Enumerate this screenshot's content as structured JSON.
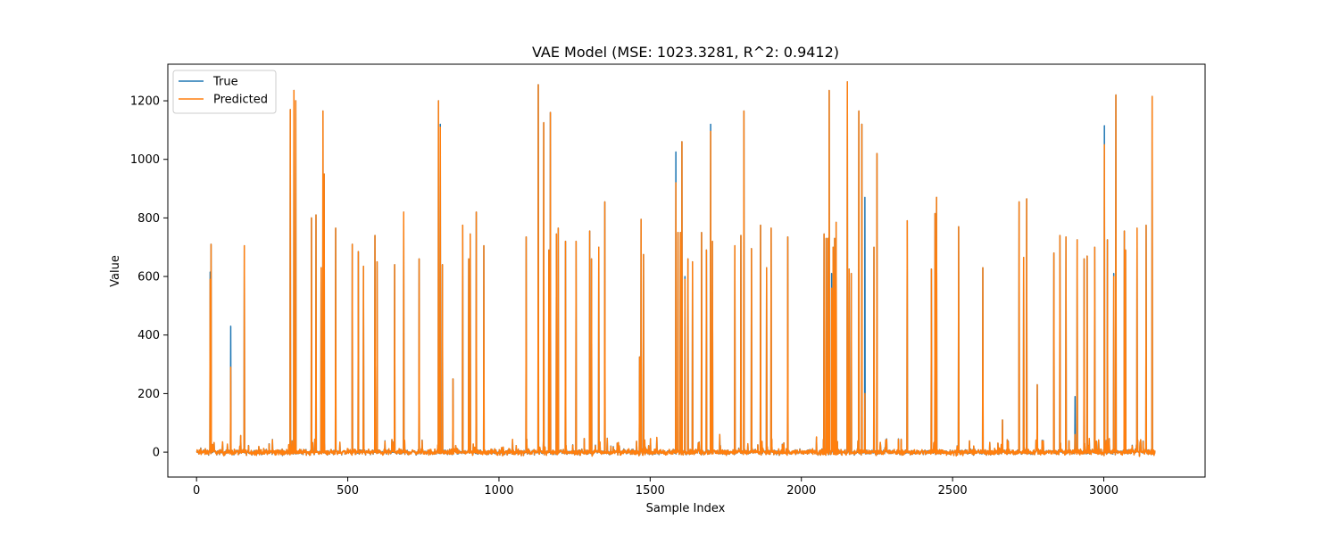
{
  "chart_data": {
    "type": "line",
    "title": "VAE Model (MSE: 1023.3281, R^2: 0.9412)",
    "xlabel": "Sample Index",
    "ylabel": "Value",
    "xlim": [
      -95,
      3335
    ],
    "ylim": [
      -85,
      1325
    ],
    "x_ticks": [
      0,
      500,
      1000,
      1500,
      2000,
      2500,
      3000
    ],
    "y_ticks": [
      0,
      200,
      400,
      600,
      800,
      1000,
      1200
    ],
    "n_samples": 3170,
    "grid": false,
    "legend_position": "upper-left",
    "colors": {
      "true": "#1f77b4",
      "predicted": "#ff7f0e"
    },
    "series": [
      {
        "name": "True",
        "color": "#1f77b4",
        "spikes": [
          [
            45,
            615
          ],
          [
            48,
            710
          ],
          [
            113,
            430
          ],
          [
            158,
            705
          ],
          [
            310,
            1170
          ],
          [
            322,
            1235
          ],
          [
            328,
            1200
          ],
          [
            380,
            800
          ],
          [
            395,
            810
          ],
          [
            412,
            630
          ],
          [
            418,
            1165
          ],
          [
            422,
            950
          ],
          [
            460,
            765
          ],
          [
            515,
            710
          ],
          [
            535,
            685
          ],
          [
            552,
            635
          ],
          [
            590,
            740
          ],
          [
            597,
            650
          ],
          [
            655,
            640
          ],
          [
            685,
            820
          ],
          [
            736,
            660
          ],
          [
            800,
            1200
          ],
          [
            806,
            1120
          ],
          [
            813,
            640
          ],
          [
            848,
            250
          ],
          [
            880,
            775
          ],
          [
            900,
            660
          ],
          [
            905,
            745
          ],
          [
            925,
            820
          ],
          [
            950,
            705
          ],
          [
            1090,
            735
          ],
          [
            1130,
            1255
          ],
          [
            1148,
            1125
          ],
          [
            1165,
            690
          ],
          [
            1170,
            1160
          ],
          [
            1190,
            745
          ],
          [
            1196,
            765
          ],
          [
            1220,
            720
          ],
          [
            1255,
            720
          ],
          [
            1300,
            755
          ],
          [
            1306,
            660
          ],
          [
            1330,
            700
          ],
          [
            1350,
            855
          ],
          [
            1465,
            325
          ],
          [
            1470,
            795
          ],
          [
            1478,
            675
          ],
          [
            1585,
            1025
          ],
          [
            1592,
            750
          ],
          [
            1600,
            750
          ],
          [
            1605,
            1060
          ],
          [
            1615,
            600
          ],
          [
            1625,
            660
          ],
          [
            1640,
            650
          ],
          [
            1670,
            750
          ],
          [
            1686,
            690
          ],
          [
            1700,
            1120
          ],
          [
            1706,
            720
          ],
          [
            1730,
            60
          ],
          [
            1780,
            705
          ],
          [
            1800,
            740
          ],
          [
            1810,
            1165
          ],
          [
            1835,
            695
          ],
          [
            1865,
            775
          ],
          [
            1885,
            630
          ],
          [
            1900,
            765
          ],
          [
            1955,
            735
          ],
          [
            2075,
            745
          ],
          [
            2082,
            730
          ],
          [
            2088,
            730
          ],
          [
            2092,
            1235
          ],
          [
            2100,
            610
          ],
          [
            2105,
            700
          ],
          [
            2110,
            730
          ],
          [
            2115,
            785
          ],
          [
            2152,
            1265
          ],
          [
            2158,
            625
          ],
          [
            2165,
            610
          ],
          [
            2190,
            1165
          ],
          [
            2200,
            1120
          ],
          [
            2210,
            870
          ],
          [
            2240,
            700
          ],
          [
            2250,
            1020
          ],
          [
            2350,
            790
          ],
          [
            2430,
            625
          ],
          [
            2442,
            815
          ],
          [
            2447,
            870
          ],
          [
            2520,
            770
          ],
          [
            2600,
            630
          ],
          [
            2665,
            110
          ],
          [
            2720,
            855
          ],
          [
            2735,
            665
          ],
          [
            2745,
            865
          ],
          [
            2780,
            230
          ],
          [
            2835,
            680
          ],
          [
            2855,
            740
          ],
          [
            2875,
            735
          ],
          [
            2905,
            190
          ],
          [
            2912,
            725
          ],
          [
            2935,
            660
          ],
          [
            2945,
            670
          ],
          [
            2970,
            700
          ],
          [
            3002,
            1115
          ],
          [
            3012,
            725
          ],
          [
            3033,
            610
          ],
          [
            3040,
            1220
          ],
          [
            3068,
            755
          ],
          [
            3072,
            690
          ],
          [
            3110,
            765
          ],
          [
            3140,
            775
          ],
          [
            3160,
            1215
          ]
        ]
      },
      {
        "name": "Predicted",
        "color": "#ff7f0e",
        "spikes": [
          [
            45,
            590
          ],
          [
            48,
            710
          ],
          [
            113,
            290
          ],
          [
            158,
            705
          ],
          [
            310,
            1170
          ],
          [
            322,
            1235
          ],
          [
            328,
            1200
          ],
          [
            380,
            800
          ],
          [
            395,
            810
          ],
          [
            412,
            630
          ],
          [
            418,
            1165
          ],
          [
            422,
            950
          ],
          [
            460,
            765
          ],
          [
            515,
            710
          ],
          [
            535,
            685
          ],
          [
            552,
            635
          ],
          [
            590,
            740
          ],
          [
            597,
            650
          ],
          [
            655,
            640
          ],
          [
            685,
            820
          ],
          [
            736,
            660
          ],
          [
            800,
            1200
          ],
          [
            806,
            1110
          ],
          [
            813,
            640
          ],
          [
            848,
            250
          ],
          [
            880,
            775
          ],
          [
            900,
            660
          ],
          [
            905,
            745
          ],
          [
            925,
            820
          ],
          [
            950,
            705
          ],
          [
            1090,
            735
          ],
          [
            1130,
            1255
          ],
          [
            1148,
            1125
          ],
          [
            1165,
            690
          ],
          [
            1170,
            1160
          ],
          [
            1190,
            745
          ],
          [
            1196,
            765
          ],
          [
            1220,
            720
          ],
          [
            1255,
            720
          ],
          [
            1300,
            755
          ],
          [
            1306,
            660
          ],
          [
            1330,
            700
          ],
          [
            1350,
            855
          ],
          [
            1465,
            325
          ],
          [
            1470,
            795
          ],
          [
            1478,
            675
          ],
          [
            1585,
            920
          ],
          [
            1592,
            750
          ],
          [
            1600,
            750
          ],
          [
            1605,
            1060
          ],
          [
            1615,
            590
          ],
          [
            1625,
            660
          ],
          [
            1640,
            650
          ],
          [
            1670,
            750
          ],
          [
            1686,
            690
          ],
          [
            1700,
            1095
          ],
          [
            1706,
            720
          ],
          [
            1730,
            60
          ],
          [
            1780,
            705
          ],
          [
            1800,
            740
          ],
          [
            1810,
            1165
          ],
          [
            1835,
            695
          ],
          [
            1865,
            775
          ],
          [
            1885,
            630
          ],
          [
            1900,
            765
          ],
          [
            1955,
            735
          ],
          [
            2075,
            745
          ],
          [
            2082,
            730
          ],
          [
            2088,
            730
          ],
          [
            2092,
            1235
          ],
          [
            2100,
            560
          ],
          [
            2105,
            700
          ],
          [
            2110,
            730
          ],
          [
            2115,
            785
          ],
          [
            2152,
            1265
          ],
          [
            2158,
            625
          ],
          [
            2165,
            610
          ],
          [
            2190,
            1165
          ],
          [
            2200,
            1120
          ],
          [
            2210,
            200
          ],
          [
            2240,
            700
          ],
          [
            2250,
            1020
          ],
          [
            2350,
            790
          ],
          [
            2430,
            625
          ],
          [
            2442,
            815
          ],
          [
            2447,
            870
          ],
          [
            2520,
            770
          ],
          [
            2600,
            630
          ],
          [
            2665,
            110
          ],
          [
            2720,
            855
          ],
          [
            2735,
            665
          ],
          [
            2745,
            865
          ],
          [
            2780,
            230
          ],
          [
            2835,
            680
          ],
          [
            2855,
            740
          ],
          [
            2875,
            735
          ],
          [
            2905,
            60
          ],
          [
            2912,
            725
          ],
          [
            2935,
            660
          ],
          [
            2945,
            670
          ],
          [
            2970,
            700
          ],
          [
            3002,
            1050
          ],
          [
            3012,
            725
          ],
          [
            3033,
            600
          ],
          [
            3040,
            1220
          ],
          [
            3068,
            755
          ],
          [
            3072,
            690
          ],
          [
            3110,
            765
          ],
          [
            3140,
            775
          ],
          [
            3160,
            1215
          ]
        ]
      }
    ]
  }
}
